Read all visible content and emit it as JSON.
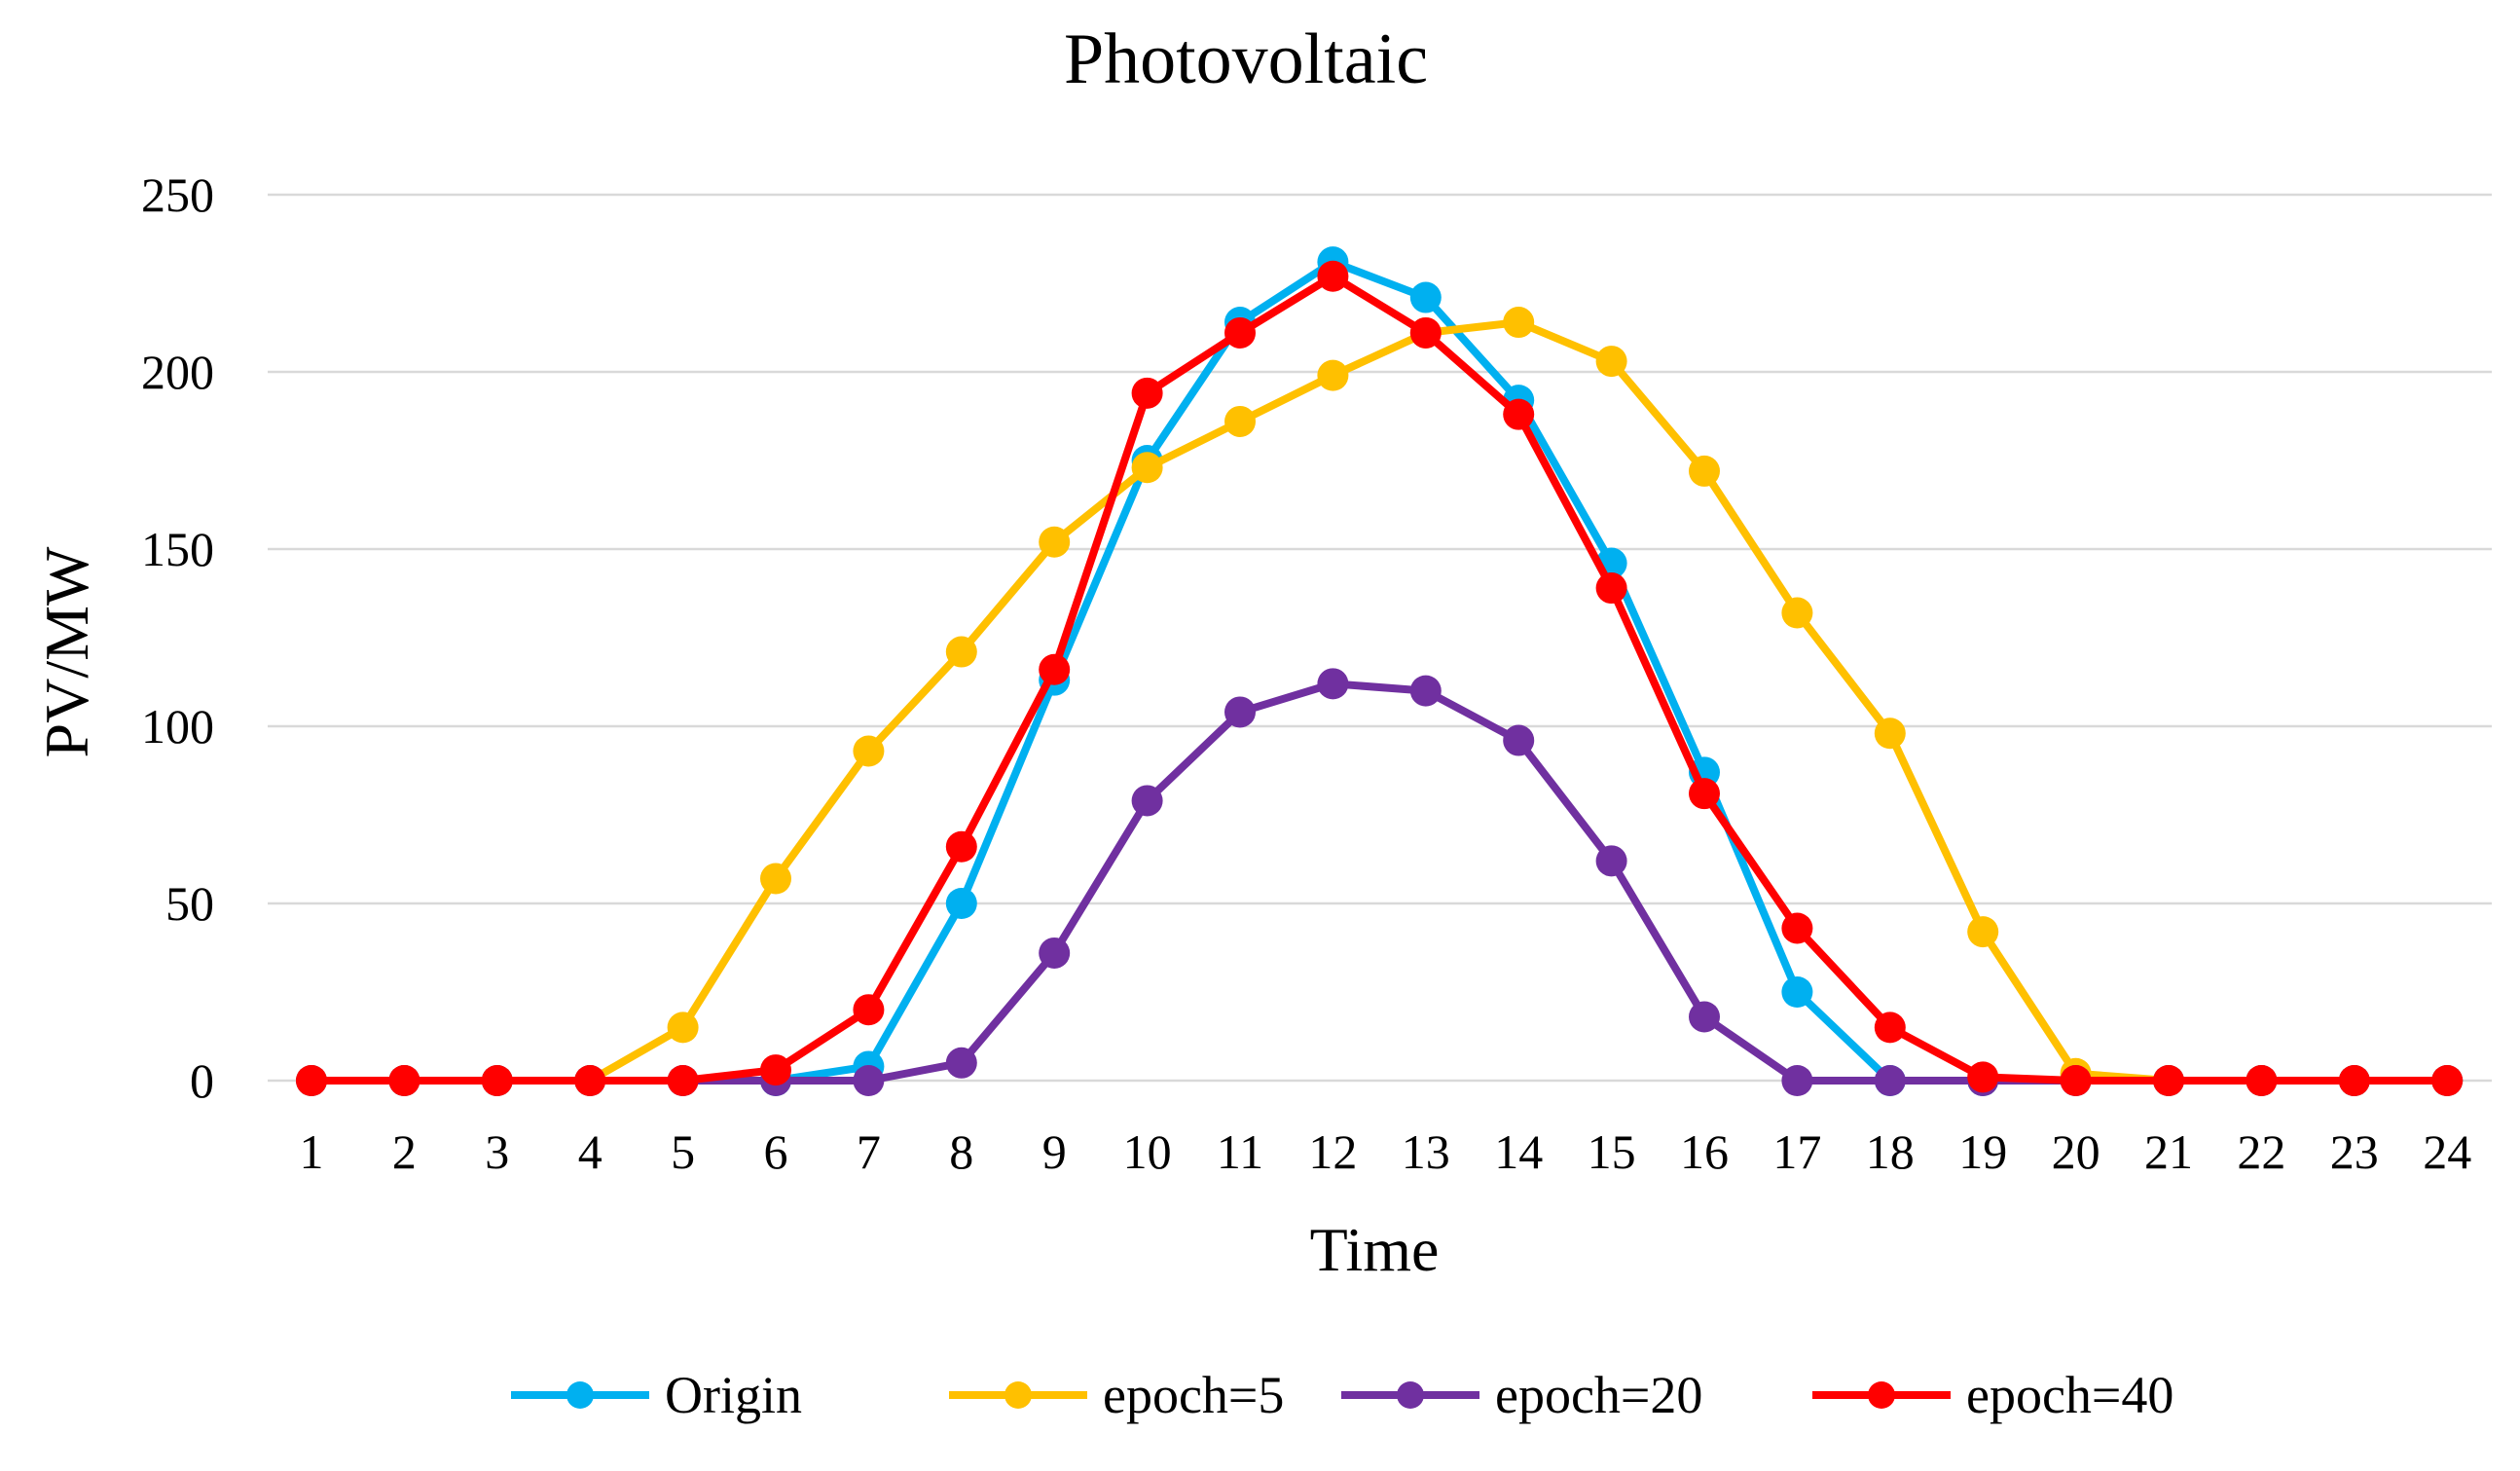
{
  "chart_data": {
    "type": "line",
    "title": "Photovoltaic",
    "xlabel": "Time",
    "ylabel": "PV/MW",
    "x": [
      1,
      2,
      3,
      4,
      5,
      6,
      7,
      8,
      9,
      10,
      11,
      12,
      13,
      14,
      15,
      16,
      17,
      18,
      19,
      20,
      21,
      22,
      23,
      24
    ],
    "ylim": [
      0,
      250
    ],
    "yticks": [
      0,
      50,
      100,
      150,
      200,
      250
    ],
    "grid": true,
    "legend_position": "bottom",
    "series": [
      {
        "name": "Origin",
        "color": "#00b0f0",
        "values": [
          0,
          0,
          0,
          0,
          0,
          0,
          4,
          50,
          113,
          175,
          214,
          231,
          221,
          192,
          146,
          87,
          25,
          0,
          0,
          0,
          0,
          0,
          0,
          0
        ]
      },
      {
        "name": "epoch=5",
        "color": "#ffc000",
        "values": [
          0,
          0,
          0,
          0,
          15,
          57,
          93,
          121,
          152,
          173,
          186,
          199,
          211,
          214,
          203,
          172,
          132,
          98,
          42,
          2,
          0,
          0,
          0,
          0
        ]
      },
      {
        "name": "epoch=20",
        "color": "#7030a0",
        "values": [
          0,
          0,
          0,
          0,
          0,
          0,
          0,
          5,
          36,
          79,
          104,
          112,
          110,
          96,
          62,
          18,
          0,
          0,
          0,
          0,
          0,
          0,
          0,
          0
        ]
      },
      {
        "name": "epoch=40",
        "color": "#ff0000",
        "values": [
          0,
          0,
          0,
          0,
          0,
          3,
          20,
          66,
          116,
          194,
          211,
          227,
          211,
          188,
          139,
          81,
          43,
          15,
          1,
          0,
          0,
          0,
          0,
          0
        ]
      }
    ]
  }
}
